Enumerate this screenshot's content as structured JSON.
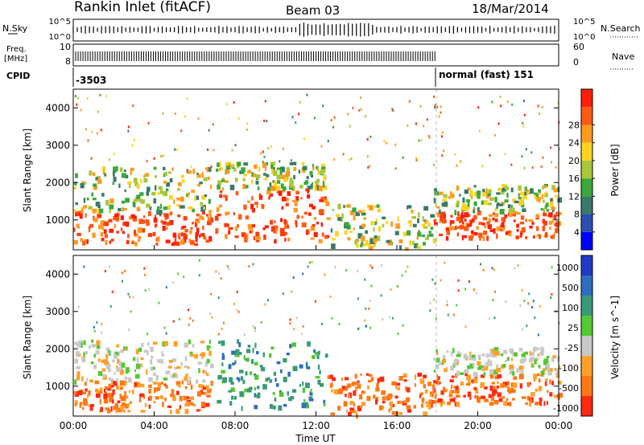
{
  "header": {
    "title": "Rankin Inlet (fitACF)",
    "beam": "Beam 03",
    "date": "18/Mar/2014"
  },
  "panels": {
    "nsky_label": "N.Sky",
    "nsky_ticks": [
      "10^5",
      "10^0"
    ],
    "nsearch_label": "N.Search",
    "nsearch_ticks": [
      "10^5",
      "10^0"
    ],
    "freq_label_1": "Freq.",
    "freq_label_2": "[MHz]",
    "freq_ticks": [
      "8",
      "10"
    ],
    "nave_label": "Nave",
    "nave_ticks": [
      "60",
      "0"
    ],
    "cpid_label": "CPID",
    "cpid_value_1": "-3503",
    "cpid_value_2": "normal (fast) 151"
  },
  "chart_data": [
    {
      "type": "heatmap",
      "parameter": "Power",
      "ylabel": "Slant Range [km]",
      "ylim": [
        200,
        4500
      ],
      "yticks": [
        "1000",
        "2000",
        "3000",
        "4000"
      ],
      "x_range_hours": [
        0,
        24
      ],
      "colorbar_title": "Power [dB]",
      "colorbar_ticks": [
        "4",
        "8",
        "12",
        "16",
        "20",
        "24",
        "28"
      ],
      "colorbar_colors": [
        "#0000ff",
        "#2a4fb0",
        "#3a7a6a",
        "#3aa83a",
        "#a8c83a",
        "#ffd21e",
        "#ff9a1e",
        "#ff5a14",
        "#ff1e0a"
      ],
      "echo_bands": [
        {
          "t0": 0.0,
          "t1": 6.8,
          "r0": 300,
          "r1": 1200,
          "level": "high"
        },
        {
          "t0": 0.0,
          "t1": 6.8,
          "r0": 1200,
          "r1": 2400,
          "level": "medium"
        },
        {
          "t0": 7.0,
          "t1": 12.5,
          "r0": 400,
          "r1": 1800,
          "level": "high"
        },
        {
          "t0": 7.0,
          "t1": 12.5,
          "r0": 1800,
          "r1": 2500,
          "level": "medium"
        },
        {
          "t0": 12.5,
          "t1": 17.8,
          "r0": 200,
          "r1": 1400,
          "level": "medium"
        },
        {
          "t0": 17.8,
          "t1": 24.0,
          "r0": 500,
          "r1": 1200,
          "level": "high"
        },
        {
          "t0": 17.8,
          "t1": 24.0,
          "r0": 1200,
          "r1": 1900,
          "level": "medium"
        }
      ]
    },
    {
      "type": "heatmap",
      "parameter": "Velocity",
      "ylabel": "Slant Range [km]",
      "ylim": [
        200,
        4500
      ],
      "yticks": [
        "1000",
        "2000",
        "3000",
        "4000"
      ],
      "x_range_hours": [
        0,
        24
      ],
      "xticks": [
        "00:00",
        "04:00",
        "08:00",
        "12:00",
        "16:00",
        "20:00",
        "00:00"
      ],
      "xlabel": "Time UT",
      "colorbar_title": "Velocity [m s^-1]",
      "colorbar_ticks": [
        "1000",
        "500",
        "100",
        "25",
        "-25",
        "-100",
        "-500",
        "-1000"
      ],
      "colorbar_colors": [
        "#1e3cc8",
        "#2e6ec0",
        "#3a9a78",
        "#55c832",
        "#c8c8c8",
        "#ffa028",
        "#ff7814",
        "#ff2810"
      ],
      "echo_bands": [
        {
          "t0": 0.0,
          "t1": 6.8,
          "r0": 300,
          "r1": 1100,
          "level": "negative"
        },
        {
          "t0": 0.0,
          "t1": 6.8,
          "r0": 1100,
          "r1": 2200,
          "level": "zero"
        },
        {
          "t0": 7.0,
          "t1": 12.5,
          "r0": 400,
          "r1": 2200,
          "level": "positive"
        },
        {
          "t0": 12.5,
          "t1": 17.8,
          "r0": 200,
          "r1": 1300,
          "level": "negative"
        },
        {
          "t0": 17.8,
          "t1": 24.0,
          "r0": 500,
          "r1": 1300,
          "level": "negative"
        },
        {
          "t0": 17.8,
          "t1": 24.0,
          "r0": 1300,
          "r1": 2000,
          "level": "zero"
        }
      ]
    }
  ]
}
